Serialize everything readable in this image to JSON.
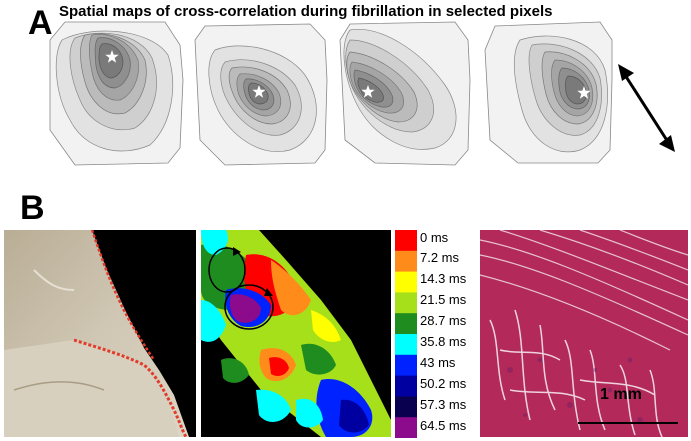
{
  "panel_a": {
    "letter": "A",
    "title": "Spatial maps of cross-correlation during fibrillation in selected pixels"
  },
  "panel_b": {
    "letter": "B",
    "colorbar": {
      "labels": [
        "0 ms",
        "7.2 ms",
        "14.3 ms",
        "21.5 ms",
        "28.7 ms",
        "35.8 ms",
        "43 ms",
        "50.2 ms",
        "57.3 ms",
        "64.5 ms"
      ],
      "colors": [
        "#ff0000",
        "#ff8c1a",
        "#ffff00",
        "#a6e01a",
        "#1e8c1e",
        "#00ffff",
        "#0022ff",
        "#0000a0",
        "#0a0050",
        "#8c0a8c"
      ]
    },
    "scale_bar_label": "1 mm"
  }
}
